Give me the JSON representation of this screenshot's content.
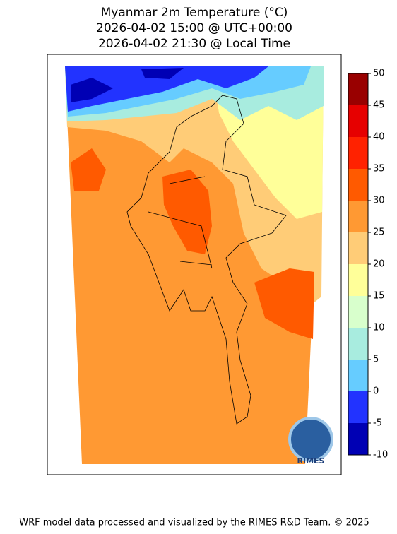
{
  "title": [
    "Myanmar 2m Temperature (°C)",
    "2026-04-02 15:00 @ UTC+00:00",
    "2026-04-02 21:30 @ Local Time"
  ],
  "colorbar": {
    "range": [
      -10,
      50
    ],
    "ticks": [
      -10,
      -5,
      0,
      5,
      10,
      15,
      20,
      25,
      30,
      35,
      40,
      45,
      50
    ],
    "colors": [
      "#0000b4",
      "#2233ff",
      "#66ccff",
      "#a8ecdf",
      "#d8ffcc",
      "#ffff99",
      "#ffcc77",
      "#ff9933",
      "#ff5a00",
      "#ff2200",
      "#e60000",
      "#990000"
    ]
  },
  "logo": "RIMES",
  "footer": "WRF model data processed and visualized by the RIMES R&D Team. © 2025"
}
